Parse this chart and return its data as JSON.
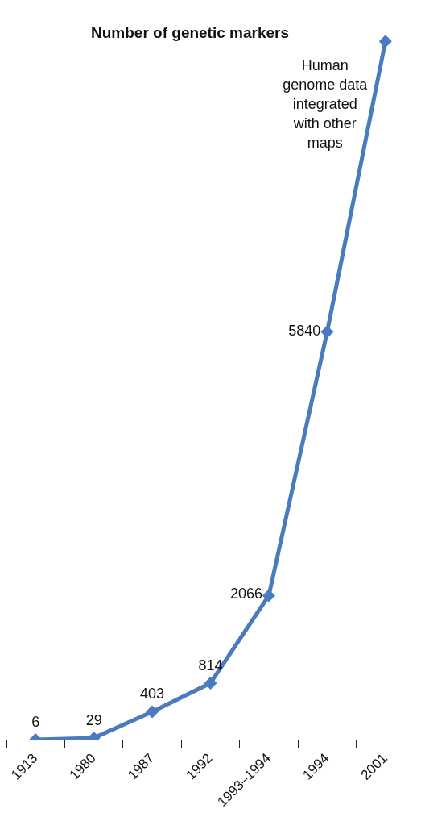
{
  "chart_data": {
    "type": "line",
    "title": "Number of genetic markers",
    "categories": [
      "1913",
      "1980",
      "1987",
      "1992",
      "1993–1994",
      "1994",
      "2001"
    ],
    "series": [
      {
        "color": "#4a7bbd",
        "values": [
          6,
          29,
          403,
          814,
          2066,
          5840,
          10000
        ],
        "value_labels": [
          "6",
          "29",
          "403",
          "814",
          "2066",
          "5840",
          null
        ]
      }
    ],
    "annotations": [
      {
        "text": "Human genome data integrated with other maps",
        "x": "2001",
        "y": 10000
      }
    ],
    "marker": "diamond",
    "line_style": "solid",
    "grid": false,
    "legend": false,
    "tick_labels": "x"
  }
}
